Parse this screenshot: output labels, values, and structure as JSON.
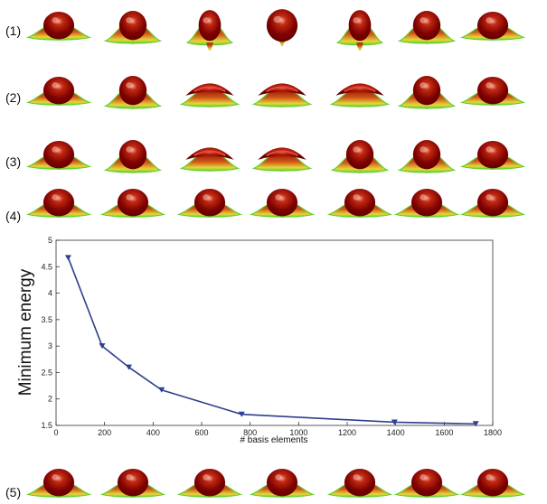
{
  "row_labels": [
    "(1)",
    "(2)",
    "(3)",
    "(4)",
    "(5)"
  ],
  "rows": [
    {
      "id": "1",
      "variants": [
        "wide",
        "mid",
        "tall",
        "sphere",
        "tall",
        "mid",
        "wide"
      ]
    },
    {
      "id": "2",
      "variants": [
        "wide",
        "mid",
        "cap",
        "cap",
        "cap",
        "mid",
        "wide"
      ]
    },
    {
      "id": "3",
      "variants": [
        "wide",
        "mid",
        "cap",
        "cap",
        "mid",
        "mid",
        "wide"
      ]
    },
    {
      "id": "4",
      "variants": [
        "wide",
        "wide",
        "wide",
        "wide",
        "wide",
        "wide",
        "wide"
      ]
    },
    {
      "id": "5",
      "variants": [
        "wide",
        "wide",
        "wide",
        "wide",
        "wide",
        "wide",
        "wide"
      ]
    }
  ],
  "colors": {
    "shape_core": "#7a0000",
    "shape_body": "#c42a12",
    "shape_edge": "#e6d63a",
    "shape_rim": "#5fcf2e",
    "line": "#2e3f8f",
    "axis": "#333333"
  },
  "chart_data": {
    "type": "line",
    "xlabel": "# basis elements",
    "ylabel": "Minimum energy",
    "xlim": [
      0,
      1800
    ],
    "ylim": [
      1.5,
      5
    ],
    "xticks": [
      0,
      200,
      400,
      600,
      800,
      1000,
      1200,
      1400,
      1600,
      1800
    ],
    "yticks": [
      1.5,
      2,
      2.5,
      3,
      3.5,
      4,
      4.5,
      5
    ],
    "marker": "down-triangle",
    "grid": false,
    "series": [
      {
        "x": [
          50,
          190,
          300,
          435,
          765,
          1395,
          1730
        ],
        "values": [
          4.67,
          3.0,
          2.6,
          2.17,
          1.71,
          1.56,
          1.53
        ]
      }
    ]
  }
}
